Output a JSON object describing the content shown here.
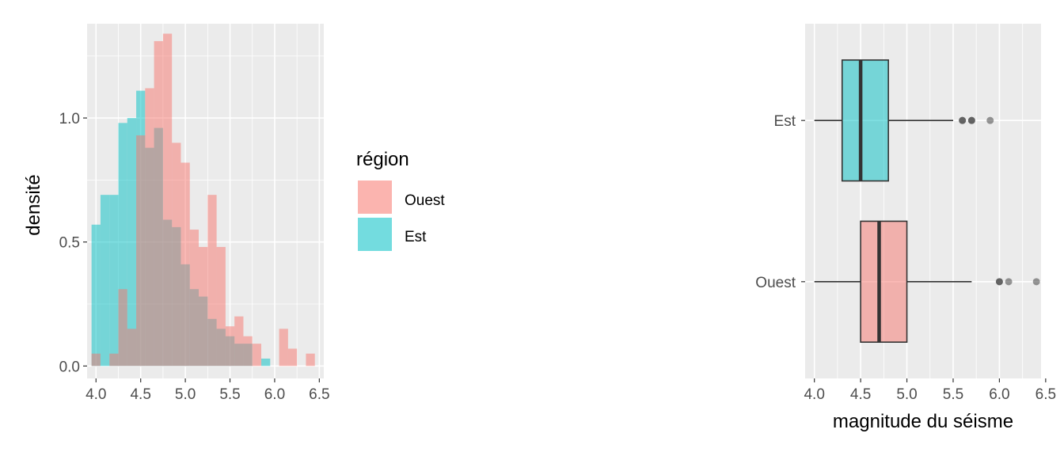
{
  "chart_data": [
    {
      "type": "histogram",
      "xlabel": "",
      "ylabel": "densité",
      "xlim": [
        3.9,
        6.55
      ],
      "ylim": [
        -0.05,
        1.38
      ],
      "x_ticks": [
        "4.0",
        "4.5",
        "5.0",
        "5.5",
        "6.0",
        "6.5"
      ],
      "y_ticks": [
        "0.0",
        "0.5",
        "1.0"
      ],
      "bin_width": 0.1,
      "bin_starts": [
        3.95,
        4.05,
        4.15,
        4.25,
        4.35,
        4.45,
        4.55,
        4.65,
        4.75,
        4.85,
        4.95,
        5.05,
        5.15,
        5.25,
        5.35,
        5.45,
        5.55,
        5.65,
        5.75,
        5.85,
        5.95,
        6.05,
        6.15,
        6.25,
        6.35
      ],
      "series": [
        {
          "name": "Est",
          "color": "#00BFC4",
          "values": [
            0.57,
            0.69,
            0.69,
            0.98,
            1.0,
            1.11,
            0.88,
            0.96,
            0.59,
            0.56,
            0.41,
            0.31,
            0.28,
            0.19,
            0.15,
            0.12,
            0.09,
            0.09,
            0.0,
            0.03,
            0.0,
            0.0,
            0.0,
            0.0,
            0.0
          ]
        },
        {
          "name": "Ouest",
          "color": "#F8766D",
          "values": [
            0.05,
            0.0,
            0.05,
            0.31,
            0.15,
            0.93,
            1.12,
            1.31,
            1.34,
            0.9,
            0.82,
            0.55,
            0.48,
            0.69,
            0.48,
            0.16,
            0.2,
            0.12,
            0.09,
            0.0,
            0.0,
            0.15,
            0.07,
            0.0,
            0.05
          ]
        }
      ],
      "grid": true,
      "legend": {
        "title": "région",
        "placement": "right",
        "items": [
          {
            "label": "Ouest",
            "color": "#F8766D"
          },
          {
            "label": "Est",
            "color": "#00BFC4"
          }
        ]
      }
    },
    {
      "type": "boxplot",
      "orientation": "horizontal",
      "xlabel": "magnitude du séisme",
      "ylabel": "",
      "xlim": [
        3.9,
        6.45
      ],
      "x_ticks": [
        "4.0",
        "4.5",
        "5.0",
        "5.5",
        "6.0",
        "6.5"
      ],
      "categories": [
        "Est",
        "Ouest"
      ],
      "grid": true,
      "boxes": [
        {
          "category": "Est",
          "color": "#00BFC4",
          "whisker_low": 4.0,
          "q1": 4.3,
          "median": 4.5,
          "q3": 4.8,
          "whisker_high": 5.5,
          "outliers": [
            5.6,
            5.6,
            5.7,
            5.7,
            5.9
          ]
        },
        {
          "category": "Ouest",
          "color": "#F8766D",
          "whisker_low": 4.0,
          "q1": 4.5,
          "median": 4.7,
          "q3": 5.0,
          "whisker_high": 5.7,
          "outliers": [
            6.0,
            6.0,
            6.1,
            6.4
          ]
        }
      ]
    }
  ]
}
